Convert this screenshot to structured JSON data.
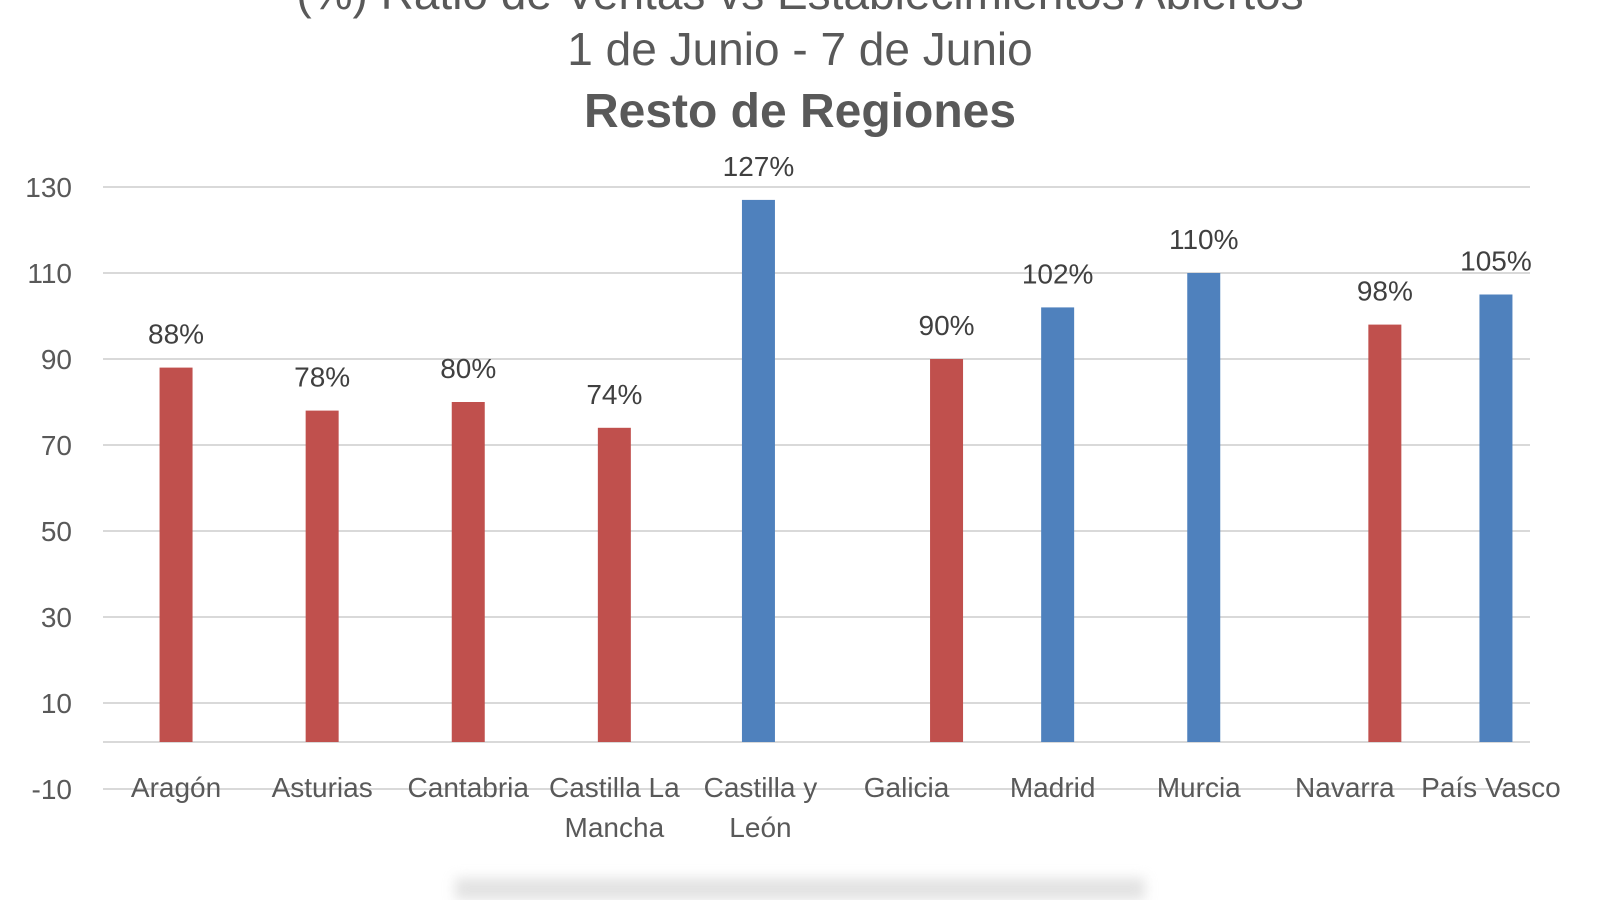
{
  "title": {
    "line1": "(%) Ratio de Ventas vs Establecimientos Abiertos",
    "line2": "1 de Junio - 7 de Junio",
    "line3": "Resto de Regiones"
  },
  "colors": {
    "red": "#C0504D",
    "blue": "#4F81BD",
    "grid": "#D9D9D9",
    "text": "#595959"
  },
  "chart_data": {
    "type": "bar",
    "categories": [
      [
        "Aragón"
      ],
      [
        "Asturias"
      ],
      [
        "Cantabria"
      ],
      [
        "Castilla La",
        "Mancha"
      ],
      [
        "Castilla y",
        "León"
      ],
      [
        "Galicia"
      ],
      [
        "Madrid"
      ],
      [
        "Murcia"
      ],
      [
        "Navarra"
      ],
      [
        "País Vasco"
      ]
    ],
    "values": [
      88,
      78,
      80,
      74,
      127,
      90,
      102,
      110,
      98,
      105
    ],
    "data_labels": [
      "88%",
      "78%",
      "80%",
      "74%",
      "127%",
      "90%",
      "102%",
      "110%",
      "98%",
      "105%"
    ],
    "bar_colors": [
      "red",
      "red",
      "red",
      "red",
      "blue",
      "red",
      "blue",
      "blue",
      "red",
      "blue"
    ],
    "yticks": [
      130,
      110,
      90,
      70,
      50,
      30,
      10,
      -10
    ],
    "ylim": [
      -10,
      130
    ],
    "grid": true,
    "legend": "none"
  }
}
